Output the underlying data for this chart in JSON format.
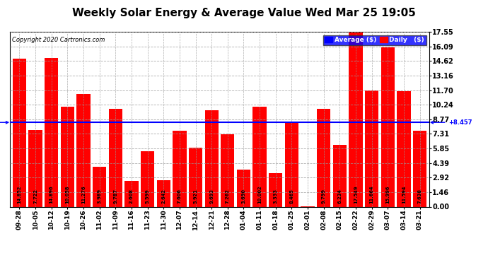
{
  "title": "Weekly Solar Energy & Average Value Wed Mar 25 19:05",
  "copyright": "Copyright 2020 Cartronics.com",
  "categories": [
    "09-28",
    "10-05",
    "10-12",
    "10-19",
    "10-26",
    "11-02",
    "11-09",
    "11-16",
    "11-23",
    "11-30",
    "12-07",
    "12-14",
    "12-21",
    "12-28",
    "01-04",
    "01-11",
    "01-18",
    "01-25",
    "02-01",
    "02-08",
    "02-15",
    "02-22",
    "02-29",
    "03-07",
    "03-14",
    "03-21"
  ],
  "values": [
    14.852,
    7.722,
    14.896,
    10.058,
    11.276,
    3.989,
    9.787,
    2.608,
    5.599,
    2.642,
    7.606,
    5.921,
    9.693,
    7.262,
    3.69,
    10.002,
    3.333,
    8.465,
    0.008,
    9.799,
    6.234,
    17.549,
    11.664,
    15.996,
    11.594,
    7.638
  ],
  "average": 8.457,
  "bar_color": "#FF0000",
  "average_line_color": "#0000FF",
  "background_color": "#FFFFFF",
  "plot_bg_color": "#FFFFFF",
  "grid_color": "#999999",
  "title_fontsize": 11,
  "yticks": [
    0.0,
    1.46,
    2.92,
    4.39,
    5.85,
    7.31,
    8.77,
    10.24,
    11.7,
    13.16,
    14.62,
    16.09,
    17.55
  ],
  "ylim": [
    0,
    17.55
  ],
  "legend_avg_color": "#0000FF",
  "legend_daily_color": "#FF0000"
}
